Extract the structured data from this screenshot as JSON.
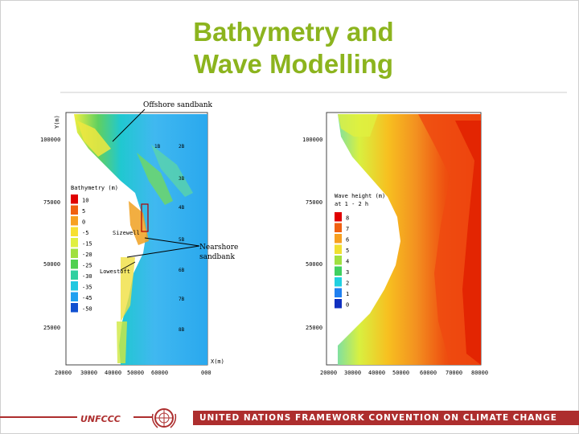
{
  "slide": {
    "title_line1": "Bathymetry and",
    "title_line2": "Wave Modelling"
  },
  "left_map": {
    "y_axis_label": "Y(m)",
    "x_axis_label": "X(m)",
    "y_ticks": [
      "100000",
      "75000",
      "50000",
      "25000"
    ],
    "x_ticks": [
      "20000",
      "30000",
      "40000",
      "50000",
      "60000",
      "000"
    ],
    "annotations": {
      "offshore": "Offshore sandbank",
      "nearshore_line1": "Nearshore",
      "nearshore_line2": "sandbank",
      "sizewell": "Sizewell",
      "lowestoft": "Lowestoft"
    },
    "stations": [
      "1B",
      "2B",
      "3B",
      "4B",
      "5B",
      "6B",
      "7B",
      "8B"
    ],
    "legend": {
      "title": "Bathymetry (m)",
      "entries": [
        "10",
        "5",
        "0",
        "-5",
        "-15",
        "-20",
        "-25",
        "-30",
        "-35",
        "-45",
        "-50"
      ],
      "colors": [
        "#e00000",
        "#f06010",
        "#f7a020",
        "#f7e030",
        "#e0f040",
        "#a0e040",
        "#50d050",
        "#30d0a0",
        "#20c8e0",
        "#20a0f0",
        "#1050d0"
      ]
    }
  },
  "right_map": {
    "y_ticks": [
      "100000",
      "75000",
      "50000",
      "25000"
    ],
    "x_ticks": [
      "20000",
      "30000",
      "40000",
      "50000",
      "60000",
      "70000",
      "80000"
    ],
    "legend": {
      "title_line1": "Wave height (m)",
      "title_line2": "at 1 - 2 h",
      "entries": [
        "8",
        "7",
        "6",
        "5",
        "4",
        "3",
        "2",
        "1",
        "0"
      ],
      "colors": [
        "#e00000",
        "#f06010",
        "#f7a020",
        "#f0e030",
        "#a0e040",
        "#40d060",
        "#20d0e0",
        "#2080f0",
        "#1030c0"
      ]
    }
  },
  "footer": {
    "left_logo_text": "UNFCCC",
    "banner_text": "UNITED NATIONS FRAMEWORK CONVENTION ON CLIMATE CHANGE"
  }
}
